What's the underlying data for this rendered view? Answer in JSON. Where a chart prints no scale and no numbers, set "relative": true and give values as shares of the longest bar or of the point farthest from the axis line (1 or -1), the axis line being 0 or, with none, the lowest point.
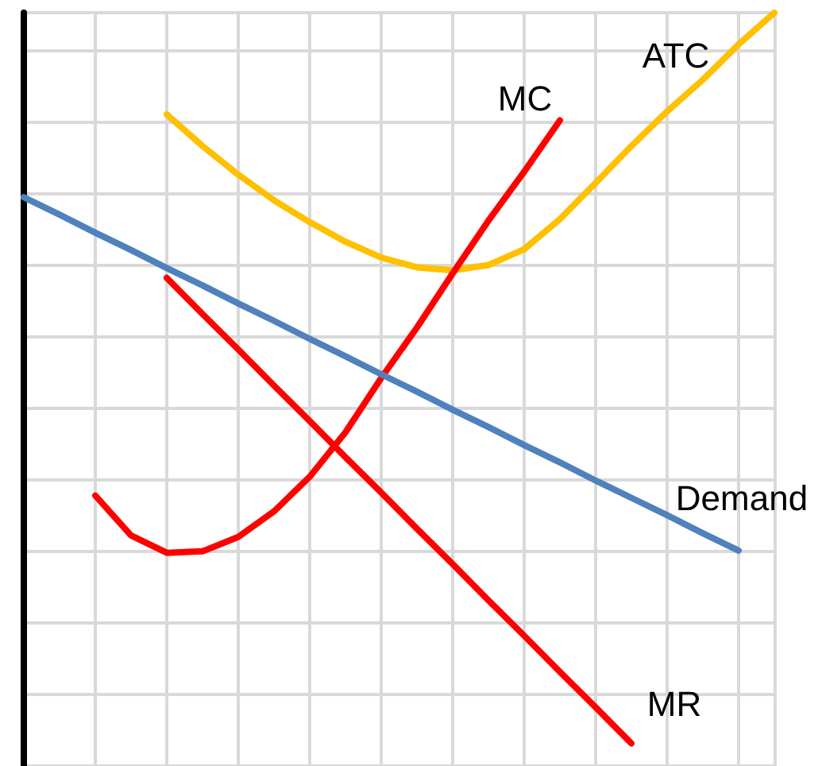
{
  "chart_data": {
    "type": "line",
    "relative": true,
    "grid": true,
    "legend": false,
    "marker": "none",
    "line_style": "solid",
    "tick_labels": false,
    "categories": [
      null,
      null,
      null,
      null,
      null,
      null,
      null,
      null,
      null,
      null,
      null,
      null,
      null,
      null,
      null,
      null,
      null,
      null,
      null,
      null,
      null,
      null
    ],
    "series": [
      {
        "name": "ATC",
        "color": "#ffc000",
        "values": [
          null,
          null,
          null,
          null,
          0.865,
          0.823,
          0.785,
          0.751,
          0.722,
          0.696,
          0.675,
          0.662,
          0.658,
          0.665,
          0.686,
          0.726,
          0.774,
          0.823,
          0.869,
          0.911,
          0.958,
          1.0
        ]
      },
      {
        "name": "MC",
        "color": "#ff0000",
        "values": [
          null,
          null,
          0.359,
          0.306,
          0.283,
          0.285,
          0.304,
          0.338,
          0.384,
          0.443,
          0.515,
          0.582,
          0.654,
          0.724,
          0.789,
          0.857,
          null,
          null,
          null,
          null,
          null,
          null
        ]
      },
      {
        "name": "Demand",
        "color": "#4f81bd",
        "values": [
          0.755,
          0.732,
          0.708,
          0.685,
          0.661,
          0.638,
          0.614,
          0.591,
          0.567,
          0.544,
          0.52,
          0.497,
          0.473,
          0.45,
          0.426,
          0.403,
          0.379,
          0.356,
          0.333,
          0.309,
          0.286,
          null
        ]
      },
      {
        "name": "MR",
        "color": "#ff0000",
        "values": [
          null,
          null,
          null,
          null,
          0.648,
          0.6,
          0.553,
          0.505,
          0.458,
          0.41,
          0.363,
          0.315,
          0.268,
          0.22,
          0.173,
          0.125,
          0.078,
          0.03,
          null,
          null,
          null,
          null
        ]
      }
    ]
  }
}
